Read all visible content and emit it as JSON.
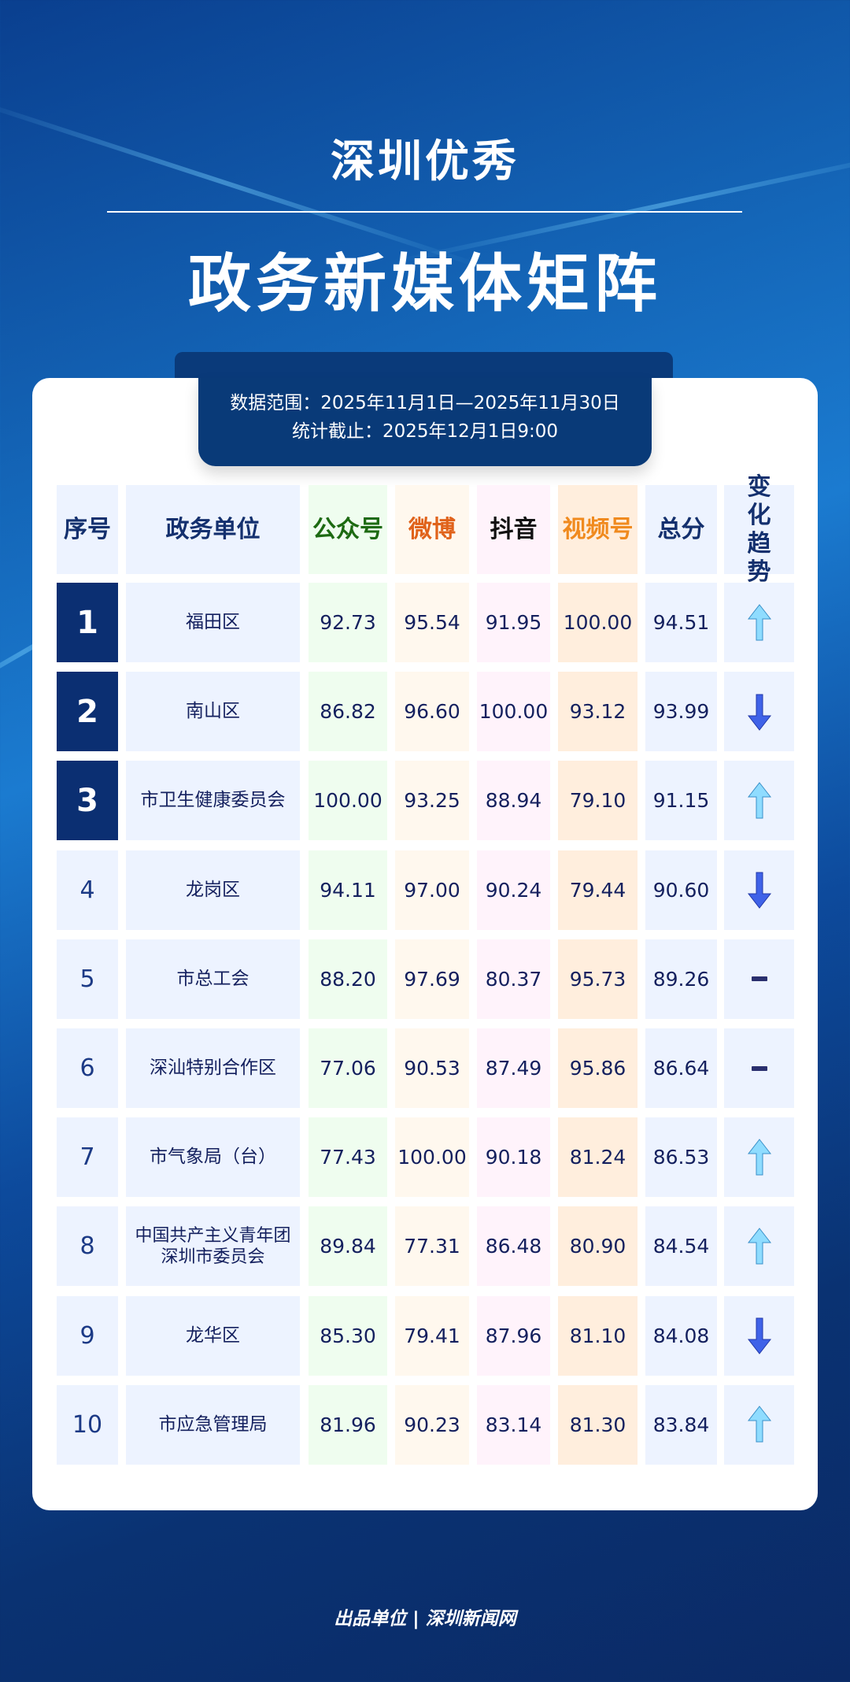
{
  "title_line1": "深圳优秀",
  "title_line2": "政务新媒体矩阵",
  "date_range": "数据范围：2025年11月1日—2025年11月30日",
  "stat_cutoff": "统计截止：2025年12月1日9:00",
  "headers": [
    "序号",
    "政务单位",
    "公众号",
    "微博",
    "抖音",
    "视频号",
    "总分",
    "变化趋势"
  ],
  "header_colors": [
    "#14306e",
    "#14306e",
    "#1d6a12",
    "#e0621a",
    "#111111",
    "#f08a1e",
    "#14306e",
    "#14306e"
  ],
  "column_bg": [
    "#edf3ff",
    "#edf3ff",
    "#effdef",
    "#fff8ee",
    "#fff3fb",
    "#ffeedd",
    "#edf3ff",
    "#edf3ff"
  ],
  "rows": [
    {
      "rank": "1",
      "unit": "福田区",
      "gzh": "92.73",
      "weibo": "95.54",
      "douyin": "91.95",
      "sph": "100.00",
      "total": "94.51",
      "trend": "up"
    },
    {
      "rank": "2",
      "unit": "南山区",
      "gzh": "86.82",
      "weibo": "96.60",
      "douyin": "100.00",
      "sph": "93.12",
      "total": "93.99",
      "trend": "down"
    },
    {
      "rank": "3",
      "unit": "市卫生健康委员会",
      "gzh": "100.00",
      "weibo": "93.25",
      "douyin": "88.94",
      "sph": "79.10",
      "total": "91.15",
      "trend": "up"
    },
    {
      "rank": "4",
      "unit": "龙岗区",
      "gzh": "94.11",
      "weibo": "97.00",
      "douyin": "90.24",
      "sph": "79.44",
      "total": "90.60",
      "trend": "down"
    },
    {
      "rank": "5",
      "unit": "市总工会",
      "gzh": "88.20",
      "weibo": "97.69",
      "douyin": "80.37",
      "sph": "95.73",
      "total": "89.26",
      "trend": "flat"
    },
    {
      "rank": "6",
      "unit": "深汕特别合作区",
      "gzh": "77.06",
      "weibo": "90.53",
      "douyin": "87.49",
      "sph": "95.86",
      "total": "86.64",
      "trend": "flat"
    },
    {
      "rank": "7",
      "unit": "市气象局（台）",
      "gzh": "77.43",
      "weibo": "100.00",
      "douyin": "90.18",
      "sph": "81.24",
      "total": "86.53",
      "trend": "up"
    },
    {
      "rank": "8",
      "unit": "中国共产主义青年团深圳市委员会",
      "gzh": "89.84",
      "weibo": "77.31",
      "douyin": "86.48",
      "sph": "80.90",
      "total": "84.54",
      "trend": "up"
    },
    {
      "rank": "9",
      "unit": "龙华区",
      "gzh": "85.30",
      "weibo": "79.41",
      "douyin": "87.96",
      "sph": "81.10",
      "total": "84.08",
      "trend": "down"
    },
    {
      "rank": "10",
      "unit": "市应急管理局",
      "gzh": "81.96",
      "weibo": "90.23",
      "douyin": "83.14",
      "sph": "81.30",
      "total": "83.84",
      "trend": "up"
    }
  ],
  "footer": "出品单位 | 深圳新闻网"
}
